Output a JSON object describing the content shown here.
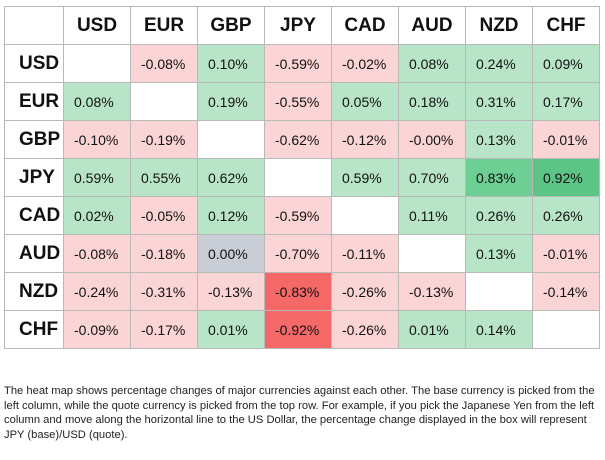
{
  "chart_data": {
    "type": "heatmap",
    "title": "",
    "columns": [
      "USD",
      "EUR",
      "GBP",
      "JPY",
      "CAD",
      "AUD",
      "NZD",
      "CHF"
    ],
    "rows": [
      "USD",
      "EUR",
      "GBP",
      "JPY",
      "CAD",
      "AUD",
      "NZD",
      "CHF"
    ],
    "values": [
      [
        null,
        -0.08,
        0.1,
        -0.59,
        -0.02,
        0.08,
        0.24,
        0.09
      ],
      [
        0.08,
        null,
        0.19,
        -0.55,
        0.05,
        0.18,
        0.31,
        0.17
      ],
      [
        -0.1,
        -0.19,
        null,
        -0.62,
        -0.12,
        -0.0,
        0.13,
        -0.01
      ],
      [
        0.59,
        0.55,
        0.62,
        null,
        0.59,
        0.7,
        0.83,
        0.92
      ],
      [
        0.02,
        -0.05,
        0.12,
        -0.59,
        null,
        0.11,
        0.26,
        0.26
      ],
      [
        -0.08,
        -0.18,
        0.0,
        -0.7,
        -0.11,
        null,
        0.13,
        -0.01
      ],
      [
        -0.24,
        -0.31,
        -0.13,
        -0.83,
        -0.26,
        -0.13,
        null,
        -0.14
      ],
      [
        -0.09,
        -0.17,
        0.01,
        -0.92,
        -0.26,
        0.01,
        0.14,
        null
      ]
    ],
    "labels": [
      [
        "",
        "-0.08%",
        "0.10%",
        "-0.59%",
        "-0.02%",
        "0.08%",
        "0.24%",
        "0.09%"
      ],
      [
        "0.08%",
        "",
        "0.19%",
        "-0.55%",
        "0.05%",
        "0.18%",
        "0.31%",
        "0.17%"
      ],
      [
        "-0.10%",
        "-0.19%",
        "",
        "-0.62%",
        "-0.12%",
        "-0.00%",
        "0.13%",
        "-0.01%"
      ],
      [
        "0.59%",
        "0.55%",
        "0.62%",
        "",
        "0.59%",
        "0.70%",
        "0.83%",
        "0.92%"
      ],
      [
        "0.02%",
        "-0.05%",
        "0.12%",
        "-0.59%",
        "",
        "0.11%",
        "0.26%",
        "0.26%"
      ],
      [
        "-0.08%",
        "-0.18%",
        "0.00%",
        "-0.70%",
        "-0.11%",
        "",
        "0.13%",
        "-0.01%"
      ],
      [
        "-0.24%",
        "-0.31%",
        "-0.13%",
        "-0.83%",
        "-0.26%",
        "-0.13%",
        "",
        "-0.14%"
      ],
      [
        "-0.09%",
        "-0.17%",
        "0.01%",
        "-0.92%",
        "-0.26%",
        "0.01%",
        "0.14%",
        ""
      ]
    ]
  },
  "colors": {
    "positive": "#b8e5c8",
    "positive_strong": "#6ecf95",
    "positive_max": "#5cc484",
    "negative": "#fbd4d6",
    "negative_strong": "#f56868",
    "zero": "#c9cdd6",
    "diagonal": "#ffffff"
  },
  "caption": "The heat map shows percentage changes of major currencies against each other. The base currency is picked from the left column, while the quote currency is picked from the top row. For example, if you pick the Japanese Yen from the left column and move along the horizontal line to the US Dollar, the percentage change displayed in the box will represent JPY (base)/USD (quote)."
}
